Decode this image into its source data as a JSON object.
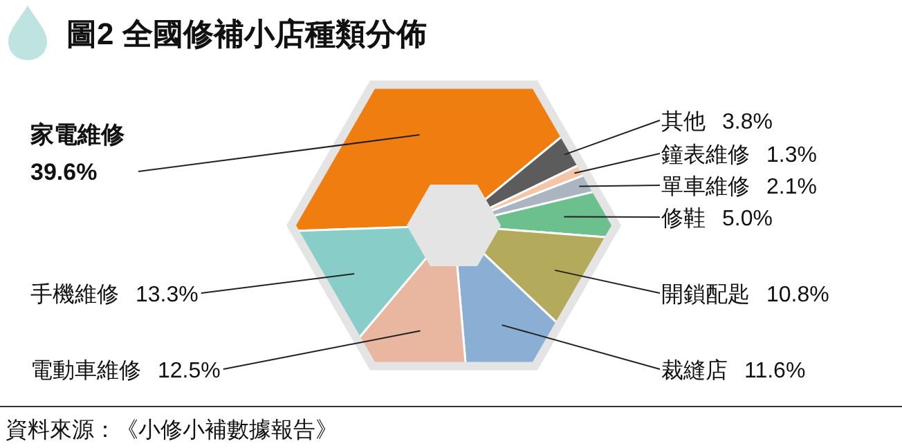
{
  "chart_data": {
    "type": "donut",
    "title": "圖2 全國修補小店種類分佈",
    "categories": [
      "家電維修",
      "其他",
      "鐘表維修",
      "單車維修",
      "修鞋",
      "開鎖配匙",
      "裁縫店",
      "電動車維修",
      "手機維修"
    ],
    "values": [
      39.6,
      3.8,
      1.3,
      2.1,
      5.0,
      10.8,
      11.6,
      12.5,
      13.3
    ],
    "value_labels": [
      "39.6%",
      "3.8%",
      "1.3%",
      "2.1%",
      "5.0%",
      "10.8%",
      "11.6%",
      "12.5%",
      "13.3%"
    ],
    "colors": [
      "#f07d0f",
      "#5c5c5c",
      "#f4c6a6",
      "#aab5c1",
      "#6cc08e",
      "#b3aa5c",
      "#8bafd4",
      "#e9b6a0",
      "#89cdc8"
    ],
    "annotations": [
      "資料來源：《小修小補數據報告》"
    ]
  }
}
